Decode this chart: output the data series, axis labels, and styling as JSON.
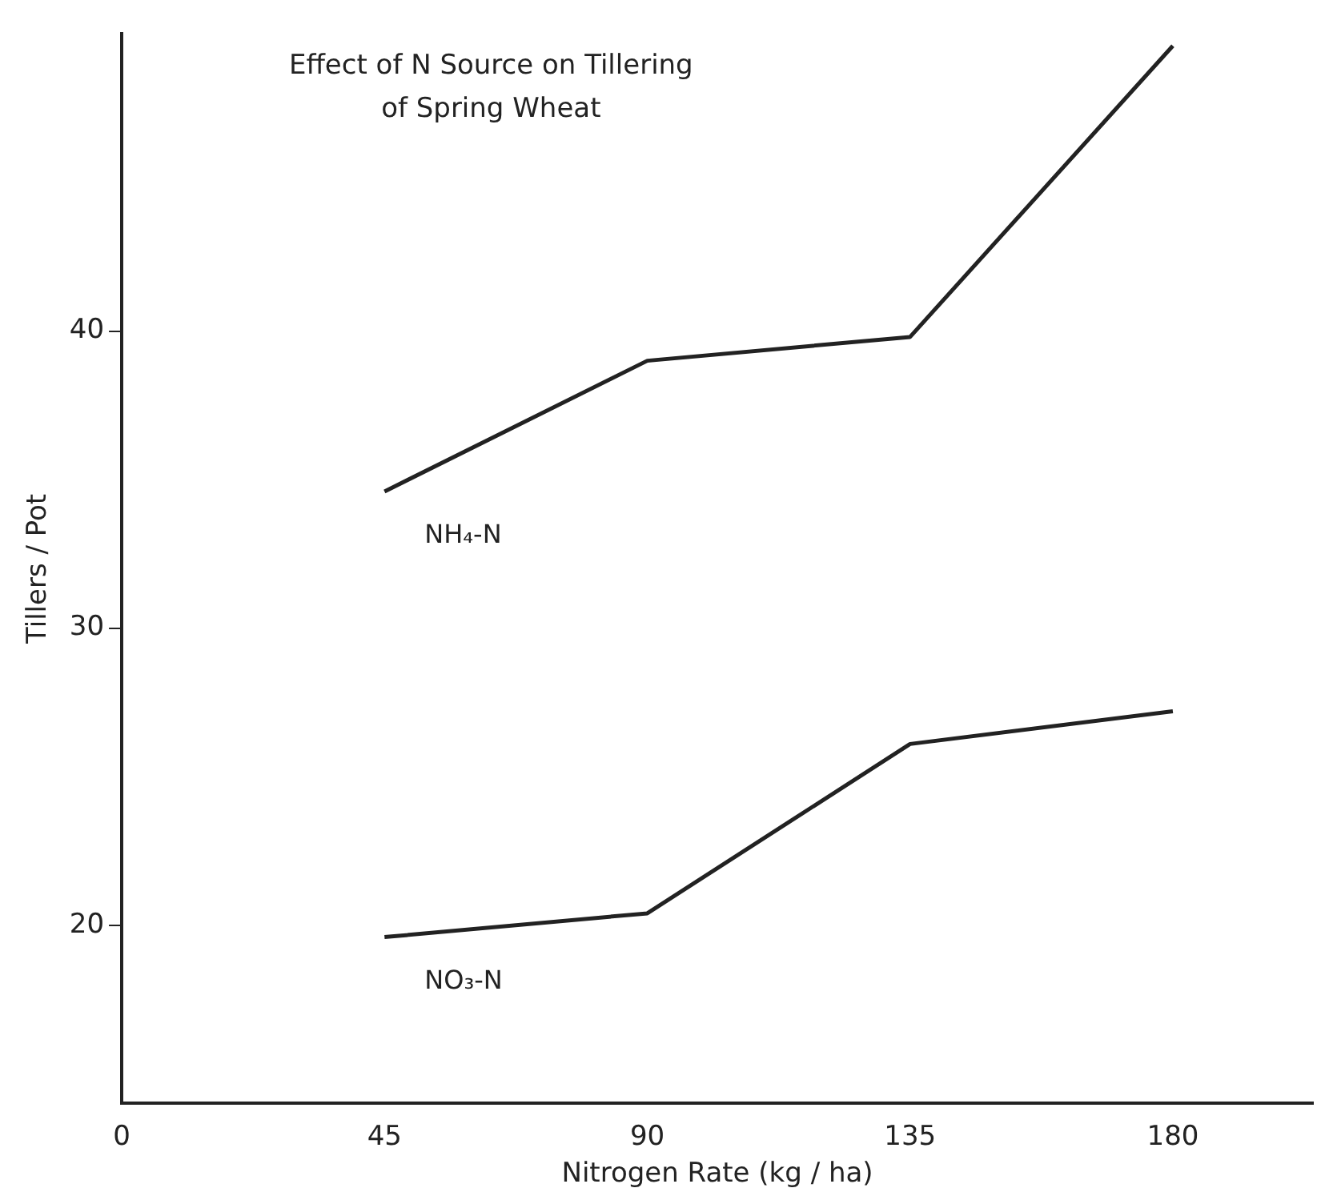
{
  "chart_data": {
    "type": "line",
    "title": "Effect of N Source on Tillering\nof Spring Wheat",
    "xlabel": "Nitrogen Rate (kg / ha)",
    "ylabel": "Tillers / Pot",
    "x": [
      45,
      90,
      135,
      180
    ],
    "series": [
      {
        "name": "NH₄-N",
        "color": "#222222",
        "values": [
          34.6,
          39.0,
          39.8,
          49.6
        ]
      },
      {
        "name": "NO₃-N",
        "color": "#222222",
        "values": [
          19.6,
          20.4,
          26.1,
          27.2
        ]
      }
    ],
    "xlim": [
      0,
      204
    ],
    "xticks": [
      0,
      45,
      90,
      135,
      180
    ],
    "ylim": [
      14,
      50
    ],
    "yticks": [
      20,
      30,
      40
    ],
    "grid": false,
    "legend": false,
    "marker": "none",
    "line_style": "solid"
  }
}
